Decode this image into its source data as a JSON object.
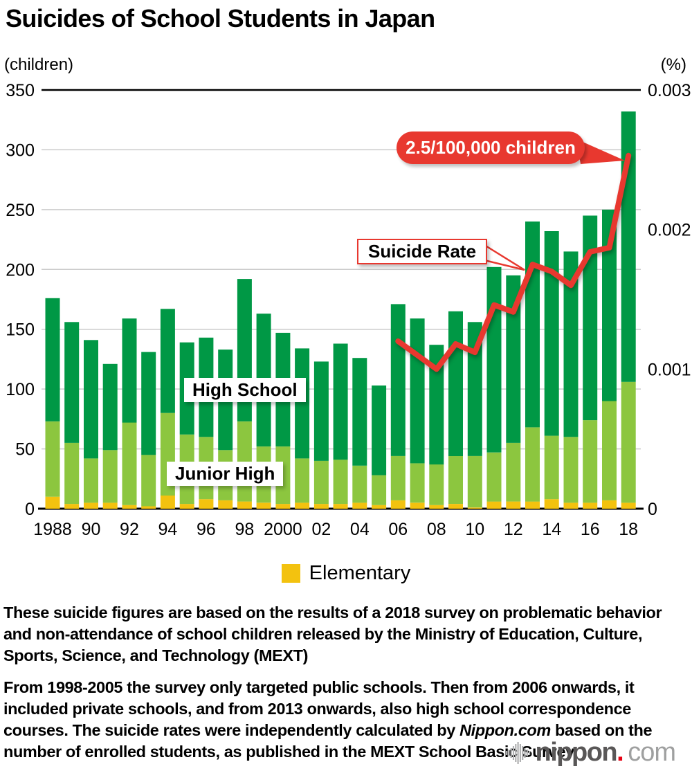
{
  "title": "Suicides of School Students in Japan",
  "axes": {
    "left_unit": "(children)",
    "right_unit": "(%)",
    "left_ticks": [
      350,
      300,
      250,
      200,
      150,
      100,
      50,
      0
    ],
    "right_tick_labels": [
      "0.003",
      "0.002",
      "0.001",
      "0"
    ],
    "x_tick_labels": [
      "1988",
      "90",
      "92",
      "94",
      "96",
      "98",
      "2000",
      "02",
      "04",
      "06",
      "08",
      "10",
      "12",
      "14",
      "16",
      "18"
    ]
  },
  "chart_data": {
    "type": "bar",
    "subtype": "stacked-bar-with-line-overlay",
    "title": "Suicides of School Students in Japan",
    "categories": [
      1988,
      1989,
      1990,
      1991,
      1992,
      1993,
      1994,
      1995,
      1996,
      1997,
      1998,
      1999,
      2000,
      2001,
      2002,
      2003,
      2004,
      2005,
      2006,
      2007,
      2008,
      2009,
      2010,
      2011,
      2012,
      2013,
      2014,
      2015,
      2016,
      2017,
      2018
    ],
    "series": [
      {
        "name": "Elementary",
        "color": "#f3c20f",
        "values": [
          10,
          4,
          5,
          5,
          3,
          2,
          11,
          4,
          8,
          7,
          6,
          5,
          4,
          5,
          4,
          4,
          5,
          3,
          7,
          5,
          3,
          4,
          1,
          6,
          6,
          6,
          8,
          5,
          5,
          7,
          5
        ]
      },
      {
        "name": "Junior High",
        "color": "#8cc63f",
        "values": [
          63,
          51,
          37,
          44,
          69,
          43,
          69,
          58,
          52,
          42,
          67,
          47,
          48,
          37,
          36,
          37,
          31,
          25,
          37,
          33,
          34,
          40,
          43,
          41,
          49,
          62,
          53,
          55,
          69,
          83,
          101
        ]
      },
      {
        "name": "High School",
        "color": "#009845",
        "values": [
          103,
          101,
          99,
          72,
          87,
          86,
          87,
          77,
          83,
          84,
          119,
          111,
          95,
          92,
          83,
          97,
          90,
          75,
          127,
          121,
          100,
          121,
          112,
          155,
          140,
          172,
          171,
          155,
          171,
          160,
          226
        ]
      }
    ],
    "totals": [
      176,
      156,
      141,
      121,
      159,
      131,
      167,
      139,
      143,
      133,
      192,
      163,
      147,
      134,
      123,
      138,
      126,
      103,
      171,
      159,
      137,
      165,
      156,
      202,
      195,
      240,
      232,
      215,
      245,
      250,
      332
    ],
    "line_series": {
      "name": "Suicide Rate",
      "axis": "right",
      "color": "#e8382f",
      "start_year": 2006,
      "values": [
        0.0012,
        0.0011,
        0.001,
        0.00118,
        0.00112,
        0.00146,
        0.00141,
        0.00175,
        0.0017,
        0.0016,
        0.00184,
        0.00187,
        0.00253
      ],
      "end_label": "2.5/100,000 children"
    },
    "left_axis_range": [
      0,
      350
    ],
    "right_axis_range": [
      0,
      0.003
    ],
    "grid": "horizontal gridlines every 50 children",
    "legend_position": "bottom-center"
  },
  "annotations": {
    "high_school_label": "High School",
    "junior_high_label": "Junior High",
    "suicide_rate_label": "Suicide Rate",
    "callout": "2.5/100,000 children"
  },
  "legend": {
    "elementary_label": "Elementary"
  },
  "notes": {
    "note1": "These suicide figures are based on the results of a 2018 survey on problematic behavior and non-attendance of school children released by the Ministry of Education, Culture, Sports, Science, and Technology (MEXT)",
    "note2_part1": "From 1998-2005 the survey only targeted public schools. Then from 2006 onwards, it included private schools, and from 2013 onwards, also high school correspondence courses. The suicide rates were independently calculated by ",
    "note2_italic": "Nippon.com",
    "note2_part2": " based on the number of enrolled students, as published in the MEXT School Basic Survey."
  },
  "logo": {
    "name": "nippon",
    "dot": ".",
    "tld": "com"
  }
}
